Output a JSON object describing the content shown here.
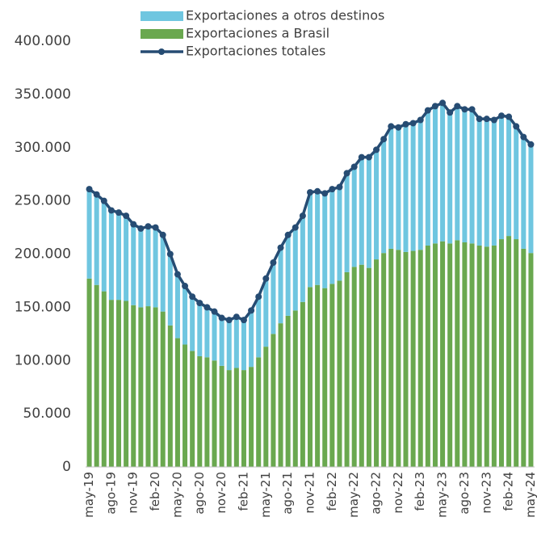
{
  "chart_data": {
    "type": "stacked-bar-line",
    "categories": [
      "may-19",
      null,
      null,
      "ago-19",
      null,
      null,
      "nov-19",
      null,
      null,
      "feb-20",
      null,
      null,
      "may-20",
      null,
      null,
      "ago-20",
      null,
      null,
      "nov-20",
      null,
      null,
      "feb-21",
      null,
      null,
      "may-21",
      null,
      null,
      "ago-21",
      null,
      null,
      "nov-21",
      null,
      null,
      "feb-22",
      null,
      null,
      "may-22",
      null,
      null,
      "ago-22",
      null,
      null,
      "nov-22",
      null,
      null,
      "feb-23",
      null,
      null,
      "may-23",
      null,
      null,
      "ago-23",
      null,
      null,
      "nov-23",
      null,
      null,
      "feb-24",
      null,
      null,
      "may-24"
    ],
    "series": [
      {
        "name": "Exportaciones a otros destinos",
        "kind": "bar",
        "color": "#6fc6e0",
        "values": [
          84000,
          85000,
          85000,
          84000,
          82000,
          80000,
          76000,
          74000,
          75000,
          75000,
          72000,
          67000,
          60000,
          55000,
          51000,
          50000,
          47000,
          46000,
          45000,
          47000,
          48000,
          47000,
          53000,
          57000,
          64000,
          67000,
          71000,
          76000,
          78000,
          81000,
          89000,
          88000,
          89000,
          89000,
          88000,
          93000,
          94000,
          101000,
          104000,
          103000,
          107000,
          115000,
          115000,
          120000,
          120000,
          122000,
          127000,
          129000,
          130000,
          123000,
          126000,
          125000,
          126000,
          119000,
          120000,
          118000,
          116000,
          112000,
          106000,
          105000,
          102000
        ]
      },
      {
        "name": "Exportaciones a Brasil",
        "kind": "bar",
        "color": "#6aa84f",
        "values": [
          177000,
          171000,
          165000,
          157000,
          157000,
          156000,
          152000,
          150000,
          151000,
          150000,
          146000,
          133000,
          121000,
          115000,
          109000,
          104000,
          103000,
          100000,
          95000,
          91000,
          93000,
          91000,
          94000,
          103000,
          113000,
          125000,
          135000,
          142000,
          147000,
          155000,
          169000,
          171000,
          168000,
          172000,
          175000,
          183000,
          188000,
          190000,
          187000,
          195000,
          201000,
          205000,
          204000,
          202000,
          203000,
          204000,
          208000,
          210000,
          212000,
          210000,
          213000,
          211000,
          210000,
          208000,
          207000,
          208000,
          214000,
          217000,
          214000,
          205000,
          201000
        ]
      },
      {
        "name": "Exportaciones totales",
        "kind": "line",
        "color": "#264c73",
        "values": [
          261000,
          256000,
          250000,
          241000,
          239000,
          236000,
          228000,
          224000,
          226000,
          225000,
          218000,
          200000,
          181000,
          170000,
          160000,
          154000,
          150000,
          146000,
          140000,
          138000,
          141000,
          138000,
          147000,
          160000,
          177000,
          192000,
          206000,
          218000,
          225000,
          236000,
          258000,
          259000,
          257000,
          261000,
          263000,
          276000,
          282000,
          291000,
          291000,
          298000,
          308000,
          320000,
          319000,
          322000,
          323000,
          326000,
          335000,
          339000,
          342000,
          333000,
          339000,
          336000,
          336000,
          327000,
          327000,
          326000,
          330000,
          329000,
          320000,
          310000,
          303000
        ]
      }
    ],
    "ylim": [
      0,
      400000
    ],
    "yticks": [
      0,
      {
        "value": 50000,
        "label": "50.000"
      },
      {
        "value": 100000,
        "label": "100.000"
      },
      {
        "value": 150000,
        "label": "150.000"
      },
      {
        "value": 200000,
        "label": "200.000"
      },
      {
        "value": 250000,
        "label": "250.000"
      },
      {
        "value": 300000,
        "label": "300.000"
      },
      {
        "value": 350000,
        "label": "350.000"
      },
      {
        "value": 400000,
        "label": "400.000"
      }
    ],
    "grid": false,
    "legend": "top"
  }
}
